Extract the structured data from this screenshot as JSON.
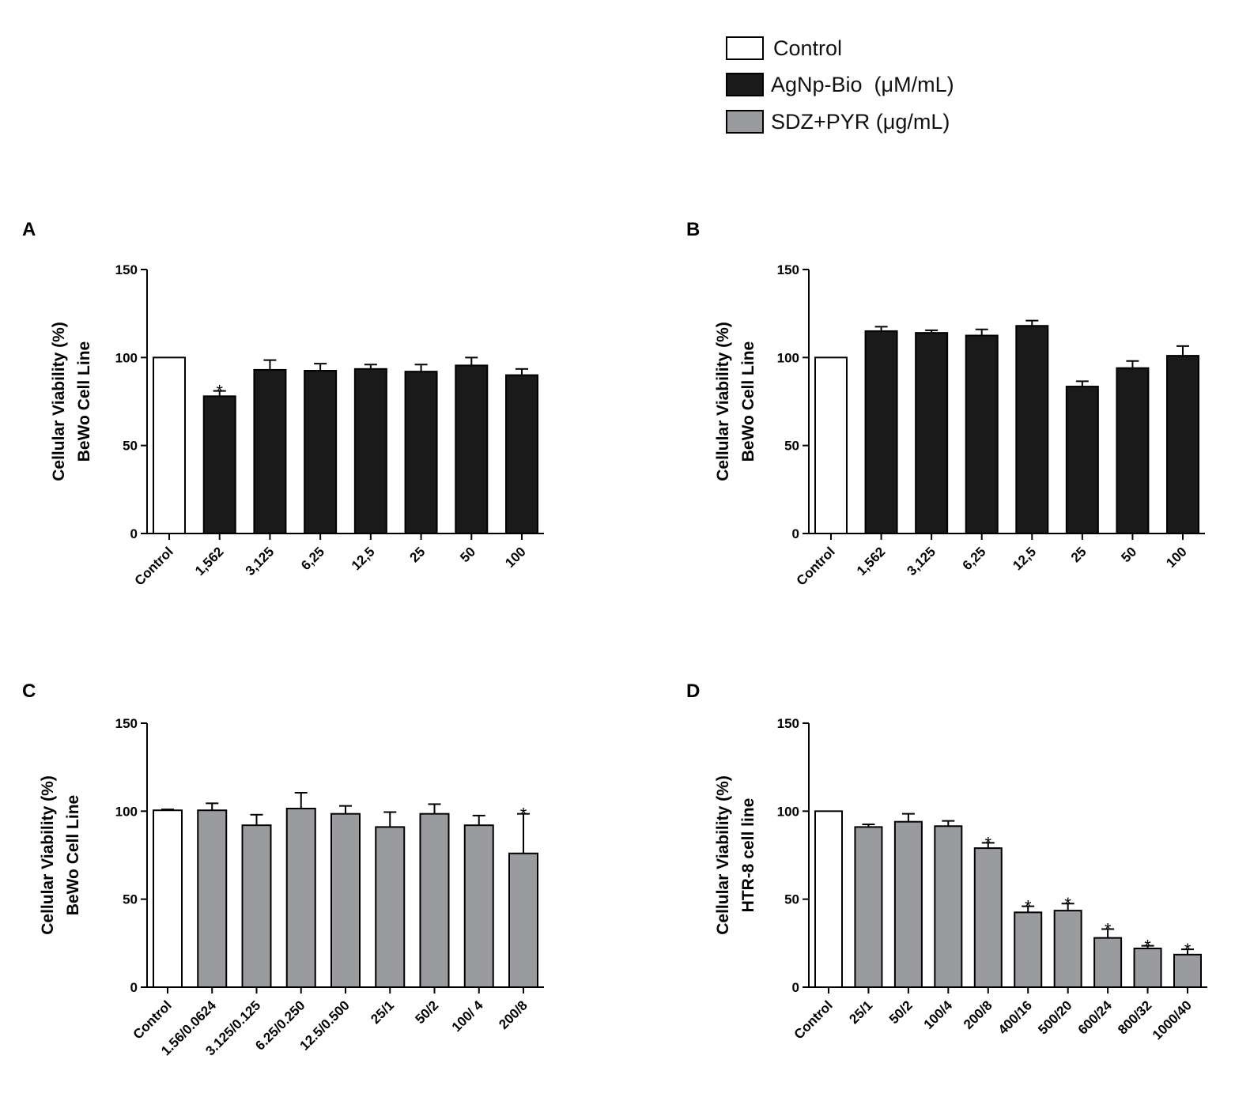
{
  "legend": {
    "items": [
      {
        "label": "Control",
        "color": "#ffffff"
      },
      {
        "label": "AgNp-Bio  (μM/mL)",
        "color": "#1a1a1a"
      },
      {
        "label": "SDZ+PYR (μg/mL)",
        "color": "#999b9e"
      }
    ]
  },
  "chart_data": [
    {
      "panel": "A",
      "type": "bar",
      "ylabel_line1": "Cellular Viability (%)",
      "ylabel_line2": "BeWo  Cell Line",
      "ylim": [
        0,
        150
      ],
      "yticks": [
        0,
        50,
        100,
        150
      ],
      "categories": [
        "Control",
        "1,562",
        "3,125",
        "6,25",
        "12,5",
        "25",
        "50",
        "100"
      ],
      "values": [
        100,
        78,
        93,
        92.5,
        93.5,
        92,
        95.5,
        90
      ],
      "errors": [
        0,
        3,
        5.5,
        4,
        2.5,
        4,
        4.5,
        3.5
      ],
      "significant": [
        false,
        true,
        false,
        false,
        false,
        false,
        false,
        false
      ],
      "groups": [
        "control",
        "agnp",
        "agnp",
        "agnp",
        "agnp",
        "agnp",
        "agnp",
        "agnp"
      ]
    },
    {
      "panel": "B",
      "type": "bar",
      "ylabel_line1": "Cellular Viability (%)",
      "ylabel_line2": "BeWo  Cell Line",
      "ylim": [
        0,
        150
      ],
      "yticks": [
        0,
        50,
        100,
        150
      ],
      "categories": [
        "Control",
        "1,562",
        "3,125",
        "6,25",
        "12,5",
        "25",
        "50",
        "100"
      ],
      "values": [
        100,
        115,
        114,
        112.5,
        118,
        83.5,
        94,
        101
      ],
      "errors": [
        0,
        2.5,
        1.5,
        3.5,
        3,
        3,
        4,
        5.5
      ],
      "significant": [
        false,
        false,
        false,
        false,
        false,
        false,
        false,
        false
      ],
      "groups": [
        "control",
        "agnp",
        "agnp",
        "agnp",
        "agnp",
        "agnp",
        "agnp",
        "agnp"
      ]
    },
    {
      "panel": "C",
      "type": "bar",
      "ylabel_line1": "Cellular Viability (%)",
      "ylabel_line2": "BeWo  Cell Line",
      "ylim": [
        0,
        150
      ],
      "yticks": [
        0,
        50,
        100,
        150
      ],
      "categories": [
        "Control",
        "1.56/0.0624",
        "3.125/0.125",
        "6.25/0.250",
        "12.5/0.500",
        "25/1",
        "50/2",
        "100/ 4",
        "200/8"
      ],
      "values": [
        100.5,
        100.5,
        92,
        101.5,
        98.5,
        91,
        98.5,
        92,
        76
      ],
      "errors": [
        0.5,
        4,
        6,
        9,
        4.5,
        8.5,
        5.5,
        5.5,
        22.5
      ],
      "significant": [
        false,
        false,
        false,
        false,
        false,
        false,
        false,
        false,
        true
      ],
      "groups": [
        "control",
        "sdz",
        "sdz",
        "sdz",
        "sdz",
        "sdz",
        "sdz",
        "sdz",
        "sdz"
      ]
    },
    {
      "panel": "D",
      "type": "bar",
      "ylabel_line1": "Cellular Viability (%)",
      "ylabel_line2": "HTR-8 cell line",
      "ylim": [
        0,
        150
      ],
      "yticks": [
        0,
        50,
        100,
        150
      ],
      "categories": [
        "Control",
        "25/1",
        "50/2",
        "100/4",
        "200/8",
        "400/16",
        "500/20",
        "600/24",
        "800/32",
        "1000/40"
      ],
      "values": [
        100,
        91,
        94,
        91.5,
        79,
        42.5,
        43.5,
        28,
        22,
        18.5
      ],
      "errors": [
        0,
        1.5,
        4.5,
        3,
        3,
        3.5,
        4,
        5,
        1.5,
        3
      ],
      "significant": [
        false,
        false,
        false,
        false,
        true,
        true,
        true,
        true,
        true,
        true
      ],
      "groups": [
        "control",
        "sdz",
        "sdz",
        "sdz",
        "sdz",
        "sdz",
        "sdz",
        "sdz",
        "sdz",
        "sdz"
      ]
    }
  ]
}
